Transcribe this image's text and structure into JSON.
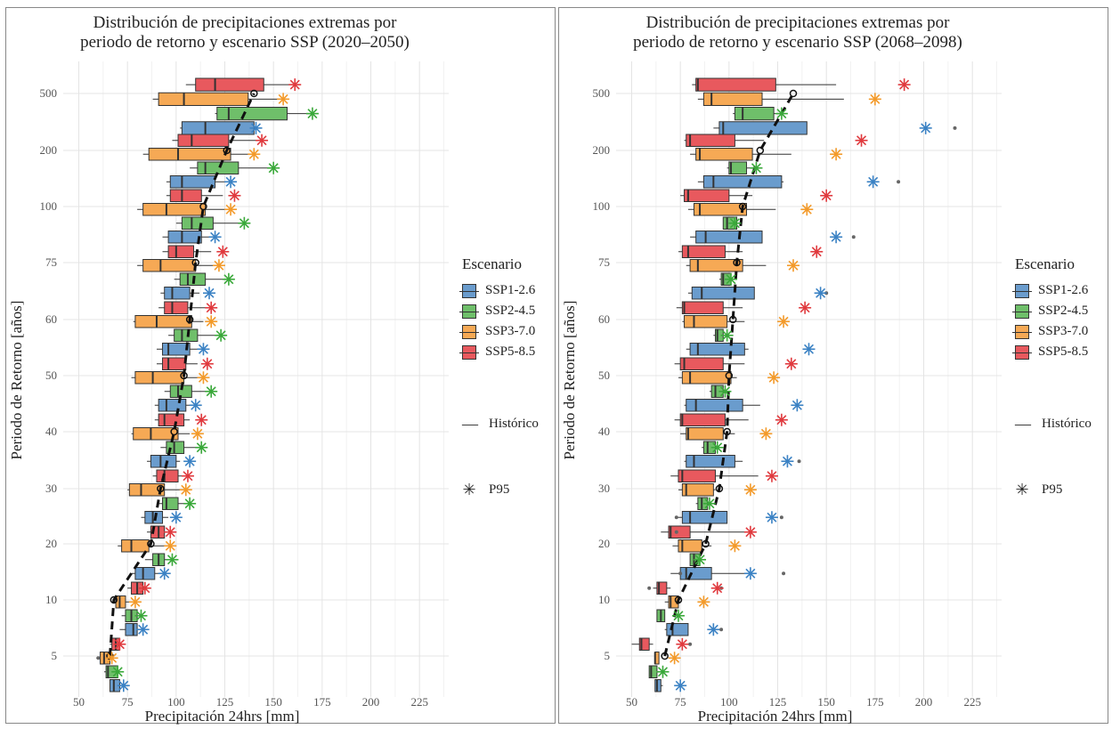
{
  "chart_data": [
    {
      "type": "box",
      "title_lines": [
        "Distribución de precipitaciones extremas por",
        "periodo de retorno y escenario SSP (2020–2050)"
      ],
      "xlabel": "Precipitación 24hrs [mm]",
      "ylabel": "Periodo de Retorno [años]",
      "xlim": [
        42,
        240
      ],
      "x_ticks": [
        "50",
        "75",
        "100",
        "125",
        "150",
        "175",
        "200",
        "225"
      ],
      "categories": [
        "5",
        "10",
        "20",
        "30",
        "40",
        "50",
        "60",
        "75",
        "100",
        "200",
        "500"
      ],
      "grid": true,
      "scenarios": [
        "SSP1-2.6",
        "SSP2-4.5",
        "SSP3-7.0",
        "SSP5-8.5"
      ],
      "colors": {
        "SSP1-2.6": "#6a9ccd",
        "SSP2-4.5": "#6fbf6a",
        "SSP3-7.0": "#f6a955",
        "SSP5-8.5": "#e8595e"
      },
      "p95_colors": {
        "SSP1-2.6": "#3b82c4",
        "SSP2-4.5": "#3aa83a",
        "SSP3-7.0": "#f39a2a",
        "SSP5-8.5": "#e03a3e"
      },
      "historic": [
        [
          66,
          "5"
        ],
        [
          68,
          "10"
        ],
        [
          87,
          "20"
        ],
        [
          92,
          "30"
        ],
        [
          99,
          "40"
        ],
        [
          104,
          "50"
        ],
        [
          107,
          "60"
        ],
        [
          110,
          "75"
        ],
        [
          114,
          "100"
        ],
        [
          126,
          "200"
        ],
        [
          140,
          "500"
        ]
      ],
      "boxes": {
        "SSP1-2.6": [
          [
            66,
            66,
            68,
            69,
            71,
            70
          ],
          [
            71,
            74,
            78,
            80,
            80,
            82
          ],
          [
            77,
            79,
            83,
            88,
            89,
            94
          ],
          [
            82,
            84,
            88,
            92,
            93,
            96
          ],
          [
            85,
            87,
            92,
            98,
            100,
            102
          ],
          [
            89,
            91,
            95,
            104,
            105,
            109
          ],
          [
            90,
            93,
            96,
            105,
            107,
            111
          ],
          [
            92,
            94,
            98,
            105,
            107,
            112
          ],
          [
            93,
            96,
            103,
            113,
            113,
            120
          ],
          [
            95,
            97,
            103,
            115,
            120,
            129
          ],
          [
            102,
            103,
            115,
            125,
            140,
            143
          ]
        ],
        "SSP2-4.5": [
          [
            63,
            64,
            65,
            67,
            70,
            69
          ],
          [
            72,
            74,
            77,
            79,
            80,
            81
          ],
          [
            84,
            88,
            91,
            93,
            94,
            97
          ],
          [
            90,
            93,
            95,
            99,
            101,
            107
          ],
          [
            92,
            95,
            99,
            102,
            104,
            114
          ],
          [
            94,
            97,
            101,
            104,
            108,
            118
          ],
          [
            96,
            99,
            103,
            107,
            111,
            123
          ],
          [
            99,
            102,
            106,
            109,
            115,
            127
          ],
          [
            100,
            103,
            108,
            112,
            119,
            134
          ],
          [
            107,
            111,
            115,
            122,
            132,
            149
          ],
          [
            120,
            121,
            127,
            145,
            157,
            169
          ]
        ],
        "SSP3-7.0": [
          [
            59,
            61,
            63,
            64,
            66,
            67
          ],
          [
            67,
            69,
            71,
            73,
            74,
            78
          ],
          [
            70,
            72,
            77,
            82,
            86,
            95
          ],
          [
            75,
            76,
            82,
            90,
            94,
            102
          ],
          [
            77,
            78,
            87,
            97,
            101,
            107
          ],
          [
            77,
            79,
            88,
            100,
            104,
            112
          ],
          [
            78,
            79,
            90,
            102,
            108,
            114
          ],
          [
            80,
            83,
            92,
            105,
            110,
            122
          ],
          [
            80,
            83,
            95,
            109,
            115,
            128
          ],
          [
            83,
            86,
            101,
            122,
            128,
            139
          ],
          [
            88,
            91,
            104,
            128,
            137,
            157
          ]
        ],
        "SSP5-8.5": [
          [
            66,
            67,
            69,
            70,
            71,
            72
          ],
          [
            75,
            77,
            80,
            82,
            83,
            86
          ],
          [
            85,
            87,
            91,
            93,
            94,
            96
          ],
          [
            88,
            90,
            94,
            100,
            101,
            104
          ],
          [
            89,
            91,
            94,
            101,
            104,
            107
          ],
          [
            90,
            93,
            96,
            103,
            105,
            111
          ],
          [
            91,
            94,
            98,
            103,
            106,
            115
          ],
          [
            93,
            96,
            100,
            106,
            109,
            118
          ],
          [
            95,
            97,
            103,
            110,
            113,
            124
          ],
          [
            98,
            101,
            108,
            119,
            127,
            141
          ],
          [
            105,
            110,
            120,
            135,
            145,
            158
          ]
        ]
      },
      "p95": {
        "SSP1-2.6": [
          73,
          83,
          94,
          100,
          107,
          110,
          114,
          117,
          120,
          128,
          141
        ],
        "SSP2-4.5": [
          70,
          82,
          98,
          107,
          113,
          118,
          123,
          127,
          135,
          150,
          170
        ],
        "SSP3-7.0": [
          67,
          79,
          97,
          105,
          111,
          114,
          118,
          122,
          128,
          140,
          155
        ],
        "SSP5-8.5": [
          71,
          84,
          97,
          106,
          113,
          116,
          118,
          124,
          130,
          144,
          161
        ]
      },
      "outliers": [
        [
          60,
          "5",
          "SSP3-7.0"
        ]
      ]
    },
    {
      "type": "box",
      "title_lines": [
        "Distribución de precipitaciones extremas por",
        "periodo de retorno y escenario SSP (2068–2098)"
      ],
      "xlabel": "Precipitación 24hrs [mm]",
      "ylabel": "Periodo de Retorno [años]",
      "xlim": [
        42,
        240
      ],
      "x_ticks": [
        "50",
        "75",
        "100",
        "125",
        "150",
        "175",
        "200",
        "225"
      ],
      "categories": [
        "5",
        "10",
        "20",
        "30",
        "40",
        "50",
        "60",
        "75",
        "100",
        "200",
        "500"
      ],
      "grid": true,
      "scenarios": [
        "SSP1-2.6",
        "SSP2-4.5",
        "SSP3-7.0",
        "SSP5-8.5"
      ],
      "colors": {
        "SSP1-2.6": "#6a9ccd",
        "SSP2-4.5": "#6fbf6a",
        "SSP3-7.0": "#f6a955",
        "SSP5-8.5": "#e8595e"
      },
      "p95_colors": {
        "SSP1-2.6": "#3b82c4",
        "SSP2-4.5": "#3aa83a",
        "SSP3-7.0": "#f39a2a",
        "SSP5-8.5": "#e03a3e"
      },
      "historic": [
        [
          67,
          "5"
        ],
        [
          74,
          "10"
        ],
        [
          88,
          "20"
        ],
        [
          95,
          "30"
        ],
        [
          99,
          "40"
        ],
        [
          100,
          "50"
        ],
        [
          102,
          "60"
        ],
        [
          104,
          "75"
        ],
        [
          107,
          "100"
        ],
        [
          116,
          "200"
        ],
        [
          133,
          "500"
        ]
      ],
      "boxes": {
        "SSP1-2.6": [
          [
            62,
            62,
            63,
            65,
            65,
            66
          ],
          [
            67,
            68,
            71,
            75,
            79,
            79
          ],
          [
            70,
            75,
            78,
            83,
            91,
            109
          ],
          [
            73,
            76,
            80,
            89,
            99,
            99
          ],
          [
            77,
            78,
            82,
            95,
            103,
            107
          ],
          [
            77,
            78,
            83,
            95,
            107,
            116
          ],
          [
            78,
            80,
            84,
            95,
            108,
            110
          ],
          [
            79,
            81,
            86,
            96,
            113,
            113
          ],
          [
            80,
            83,
            88,
            101,
            117,
            117
          ],
          [
            84,
            87,
            92,
            100,
            127,
            128
          ],
          [
            92,
            95,
            97,
            115,
            140,
            140
          ]
        ],
        "SSP2-4.5": [
          [
            59,
            59,
            60,
            62,
            63,
            63
          ],
          [
            63,
            63,
            65,
            66,
            67,
            67
          ],
          [
            80,
            80,
            82,
            83,
            85,
            86
          ],
          [
            83,
            84,
            86,
            87,
            89,
            89
          ],
          [
            86,
            87,
            89,
            91,
            93,
            93
          ],
          [
            90,
            91,
            93,
            95,
            97,
            97
          ],
          [
            92,
            93,
            94,
            96,
            97,
            97
          ],
          [
            95,
            96,
            97,
            99,
            101,
            101
          ],
          [
            97,
            97,
            99,
            101,
            104,
            104
          ],
          [
            99,
            100,
            101,
            104,
            109,
            112
          ],
          [
            102,
            103,
            107,
            113,
            123,
            127
          ]
        ],
        "SSP3-7.0": [
          [
            62,
            62,
            62,
            63,
            64,
            64
          ],
          [
            67,
            69,
            70,
            73,
            74,
            75
          ],
          [
            71,
            74,
            76,
            80,
            86,
            91
          ],
          [
            74,
            76,
            78,
            82,
            92,
            93
          ],
          [
            75,
            78,
            79,
            84,
            97,
            103
          ],
          [
            74,
            76,
            80,
            85,
            101,
            104
          ],
          [
            76,
            77,
            82,
            88,
            99,
            108
          ],
          [
            78,
            80,
            84,
            88,
            107,
            119
          ],
          [
            79,
            82,
            85,
            90,
            109,
            124
          ],
          [
            80,
            83,
            85,
            90,
            112,
            132
          ],
          [
            84,
            87,
            91,
            95,
            117,
            159
          ]
        ],
        "SSP5-8.5": [
          [
            50,
            54,
            55,
            57,
            59,
            61
          ],
          [
            61,
            63,
            64,
            66,
            68,
            70
          ],
          [
            65,
            69,
            70,
            77,
            80,
            114
          ],
          [
            70,
            74,
            76,
            85,
            93,
            115
          ],
          [
            72,
            75,
            76,
            90,
            98,
            110
          ],
          [
            72,
            75,
            77,
            92,
            97,
            108
          ],
          [
            73,
            76,
            77,
            92,
            97,
            107
          ],
          [
            74,
            76,
            79,
            91,
            98,
            107
          ],
          [
            75,
            77,
            79,
            91,
            100,
            112
          ],
          [
            77,
            78,
            80,
            91,
            103,
            118
          ],
          [
            81,
            83,
            84,
            100,
            124,
            155
          ]
        ]
      },
      "p95": {
        "SSP1-2.6": [
          75,
          92,
          111,
          122,
          130,
          135,
          141,
          147,
          155,
          174,
          201
        ],
        "SSP2-4.5": [
          66,
          74,
          85,
          90,
          94,
          98,
          99,
          101,
          103,
          114,
          127
        ],
        "SSP3-7.0": [
          72,
          87,
          103,
          111,
          119,
          123,
          128,
          133,
          140,
          155,
          175
        ],
        "SSP5-8.5": [
          76,
          94,
          111,
          122,
          127,
          132,
          139,
          145,
          150,
          168,
          190
        ]
      },
      "outliers": [
        [
          216,
          "500",
          "SSP1-2.6"
        ],
        [
          187,
          "200",
          "SSP1-2.6"
        ],
        [
          164,
          "100",
          "SSP1-2.6"
        ],
        [
          150,
          "75",
          "SSP1-2.6"
        ],
        [
          141,
          "60",
          "SSP1-2.6"
        ],
        [
          136,
          "40",
          "SSP1-2.6"
        ],
        [
          128,
          "20",
          "SSP1-2.6"
        ],
        [
          127,
          "30",
          "SSP1-2.6"
        ],
        [
          96,
          "10",
          "SSP1-2.6"
        ],
        [
          96,
          "10",
          "SSP5-8.5"
        ],
        [
          80,
          "5",
          "SSP5-8.5"
        ],
        [
          75,
          "20",
          "SSP1-2.6"
        ],
        [
          73,
          "20",
          "SSP5-8.5"
        ],
        [
          73,
          "30",
          "SSP1-2.6"
        ],
        [
          59,
          "10",
          "SSP5-8.5"
        ]
      ]
    }
  ],
  "legend": {
    "title": "Escenario",
    "items": [
      "SSP1-2.6",
      "SSP2-4.5",
      "SSP3-7.0",
      "SSP5-8.5"
    ],
    "historic_label": "Histórico",
    "p95_label": "P95"
  }
}
